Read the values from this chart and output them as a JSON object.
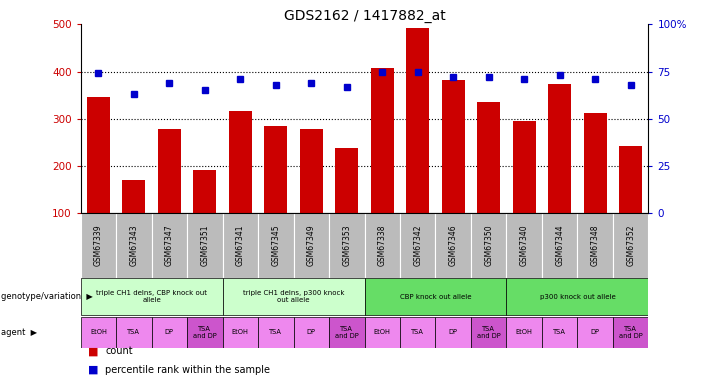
{
  "title": "GDS2162 / 1417882_at",
  "samples": [
    "GSM67339",
    "GSM67343",
    "GSM67347",
    "GSM67351",
    "GSM67341",
    "GSM67345",
    "GSM67349",
    "GSM67353",
    "GSM67338",
    "GSM67342",
    "GSM67346",
    "GSM67350",
    "GSM67340",
    "GSM67344",
    "GSM67348",
    "GSM67352"
  ],
  "bar_values": [
    345,
    170,
    278,
    192,
    317,
    285,
    278,
    238,
    408,
    492,
    383,
    335,
    296,
    373,
    312,
    242
  ],
  "dot_values": [
    74,
    63,
    69,
    65,
    71,
    68,
    69,
    67,
    75,
    75,
    72,
    72,
    71,
    73,
    71,
    68
  ],
  "bar_color": "#cc0000",
  "dot_color": "#0000cc",
  "ylim_left": [
    100,
    500
  ],
  "ylim_right": [
    0,
    100
  ],
  "yticks_left": [
    100,
    200,
    300,
    400,
    500
  ],
  "yticks_right": [
    0,
    25,
    50,
    75,
    100
  ],
  "ytick_labels_right": [
    "0",
    "25",
    "50",
    "75",
    "100%"
  ],
  "grid_values": [
    200,
    300,
    400
  ],
  "genotype_groups": [
    {
      "label": "triple CH1 delns, CBP knock out\nallele",
      "start": 0,
      "end": 4,
      "color": "#ccffcc"
    },
    {
      "label": "triple CH1 delns, p300 knock\nout allele",
      "start": 4,
      "end": 8,
      "color": "#ccffcc"
    },
    {
      "label": "CBP knock out allele",
      "start": 8,
      "end": 12,
      "color": "#66dd66"
    },
    {
      "label": "p300 knock out allele",
      "start": 12,
      "end": 16,
      "color": "#66dd66"
    }
  ],
  "agent_labels": [
    "EtOH",
    "TSA",
    "DP",
    "TSA\nand DP",
    "EtOH",
    "TSA",
    "DP",
    "TSA\nand DP",
    "EtOH",
    "TSA",
    "DP",
    "TSA\nand DP",
    "EtOH",
    "TSA",
    "DP",
    "TSA\nand DP"
  ],
  "agent_colors": [
    "#ee88ee",
    "#ee88ee",
    "#ee88ee",
    "#cc55cc",
    "#ee88ee",
    "#ee88ee",
    "#ee88ee",
    "#cc55cc",
    "#ee88ee",
    "#ee88ee",
    "#ee88ee",
    "#cc55cc",
    "#ee88ee",
    "#ee88ee",
    "#ee88ee",
    "#cc55cc"
  ],
  "bar_bottom": 100,
  "sample_box_color": "#bbbbbb",
  "xlabel_color": "#cc0000",
  "ylabel_right_color": "#0000cc",
  "bg_color": "#ffffff",
  "legend_count_color": "#cc0000",
  "legend_pct_color": "#0000cc",
  "left_label_color": "#888888",
  "left_label_geno": "genotype/variation",
  "left_label_agent": "agent"
}
